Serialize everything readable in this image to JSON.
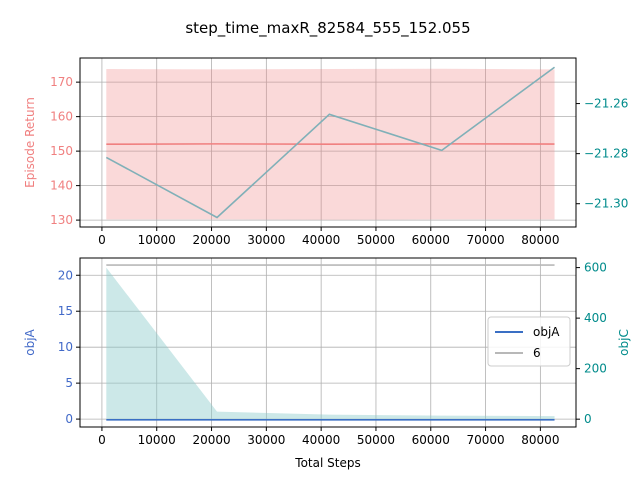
{
  "figure": {
    "title": "step_time_maxR_82584_555_152.055"
  },
  "chart_data": [
    {
      "type": "line",
      "xlim": [
        -4000,
        86500
      ],
      "x_ticks": [
        0,
        10000,
        20000,
        30000,
        40000,
        50000,
        60000,
        70000,
        80000
      ],
      "x_tick_labels": [
        "0",
        "10000",
        "20000",
        "30000",
        "40000",
        "50000",
        "60000",
        "70000",
        "80000"
      ],
      "grid": true,
      "left_axis": {
        "label": "Episode Return",
        "color": "#f08080",
        "ylim": [
          128,
          177
        ],
        "ticks": [
          130,
          140,
          150,
          160,
          170
        ],
        "tick_labels": [
          "130",
          "140",
          "150",
          "160",
          "170"
        ]
      },
      "right_axis": {
        "label": "",
        "color": "#008b8b",
        "ylim": [
          -21.3093,
          -21.2418
        ],
        "ticks": [
          -21.3,
          -21.28,
          -21.26
        ],
        "tick_labels": [
          "−21.30",
          "−21.28",
          "−21.26"
        ]
      },
      "series": [
        {
          "axis": "left",
          "kind": "line",
          "color": "#f08080",
          "x": [
            800,
            21000,
            41500,
            62000,
            82584
          ],
          "y": [
            152.0,
            152.1,
            152.0,
            152.1,
            152.055
          ]
        },
        {
          "axis": "left",
          "kind": "band",
          "color": "#f08080",
          "opacity": 0.3,
          "x": [
            800,
            21000,
            41500,
            62000,
            82584
          ],
          "lower": [
            130.2,
            130.2,
            130.1,
            130.2,
            130.2
          ],
          "upper": [
            173.8,
            173.7,
            173.8,
            173.9,
            173.7
          ]
        },
        {
          "axis": "right",
          "kind": "line",
          "color": "#80b0b8",
          "x": [
            800,
            21000,
            41500,
            62000,
            82584
          ],
          "y": [
            -21.2815,
            -21.3055,
            -21.2643,
            -21.2787,
            -21.2455
          ]
        }
      ]
    },
    {
      "type": "line",
      "xlabel": "Total Steps",
      "xlim": [
        -4000,
        86500
      ],
      "x_ticks": [
        0,
        10000,
        20000,
        30000,
        40000,
        50000,
        60000,
        70000,
        80000
      ],
      "x_tick_labels": [
        "0",
        "10000",
        "20000",
        "30000",
        "40000",
        "50000",
        "60000",
        "70000",
        "80000"
      ],
      "grid": true,
      "legend_position": "center-right",
      "left_axis": {
        "label": "objA",
        "color": "#4169c8",
        "ylim": [
          -1.1,
          22.4
        ],
        "ticks": [
          0,
          5,
          10,
          15,
          20
        ],
        "tick_labels": [
          "0",
          "5",
          "10",
          "15",
          "20"
        ]
      },
      "right_axis": {
        "label": "objC",
        "color": "#008b8b",
        "ylim": [
          -31,
          638
        ],
        "ticks": [
          0,
          200,
          400,
          600
        ],
        "tick_labels": [
          "0",
          "200",
          "400",
          "600"
        ]
      },
      "series": [
        {
          "name": "objA",
          "axis": "left",
          "kind": "line",
          "color": "#3a6fc4",
          "x": [
            800,
            21000,
            41500,
            62000,
            82584
          ],
          "y": [
            -0.1,
            -0.1,
            -0.1,
            -0.1,
            -0.1
          ]
        },
        {
          "name": "6",
          "axis": "right",
          "kind": "line",
          "color": "#b8b8b8",
          "x": [
            800,
            21000,
            41500,
            62000,
            82584
          ],
          "y": [
            610,
            610,
            610,
            610,
            610
          ]
        },
        {
          "axis": "right",
          "kind": "band",
          "color": "#8fcccc",
          "opacity": 0.45,
          "x": [
            800,
            21000,
            41500,
            62000,
            82584
          ],
          "lower": [
            0,
            0,
            0,
            0,
            0
          ],
          "upper": [
            600,
            30,
            18,
            14,
            12
          ]
        }
      ]
    }
  ]
}
